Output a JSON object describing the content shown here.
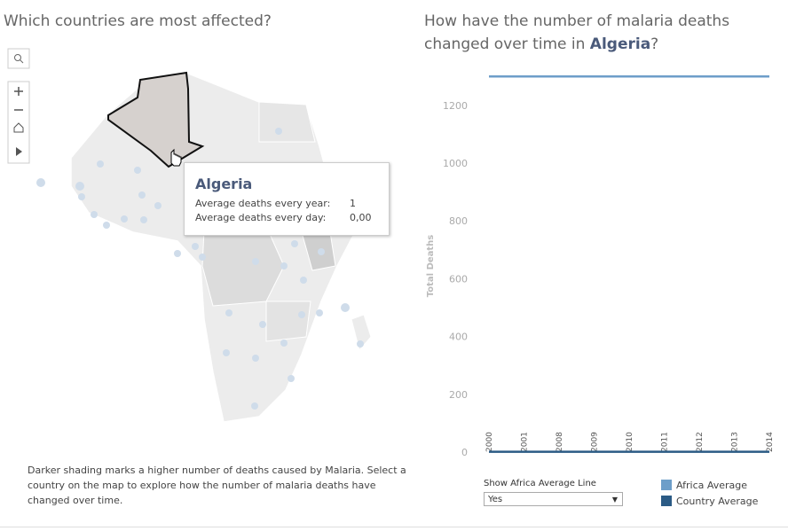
{
  "left": {
    "title": "Which countries are most affected?",
    "tooltip": {
      "country": "Algeria",
      "rows": [
        {
          "label": "Average deaths every year:",
          "value": "1"
        },
        {
          "label": "Average deaths every day:",
          "value": "0,00"
        }
      ]
    },
    "note": "Darker shading marks a higher number of deaths caused by Malaria. Select a country on the map to explore how the number of malaria deaths have changed over time."
  },
  "right": {
    "title_prefix": "How have the number of malaria deaths changed over time in ",
    "country": "Algeria",
    "title_suffix": "?",
    "control": {
      "label": "Show Africa Average Line",
      "selected": "Yes"
    }
  },
  "chart_data": {
    "type": "line",
    "ylabel": "Total Deaths",
    "categories": [
      "2000",
      "2001",
      "2008",
      "2009",
      "2010",
      "2011",
      "2012",
      "2013",
      "2014"
    ],
    "ylim": [
      0,
      1310
    ],
    "yticks": [
      0,
      200,
      400,
      600,
      800,
      1000,
      1200
    ],
    "grid": false,
    "series": [
      {
        "name": "Africa Average",
        "color": "#6d9ec9",
        "values": [
          1300,
          1300,
          1300,
          1300,
          1300,
          1300,
          1300,
          1300,
          1300
        ]
      },
      {
        "name": "Country Average",
        "color": "#2b5b85",
        "values": [
          1,
          1,
          1,
          1,
          1,
          1,
          1,
          1,
          1
        ]
      }
    ]
  }
}
